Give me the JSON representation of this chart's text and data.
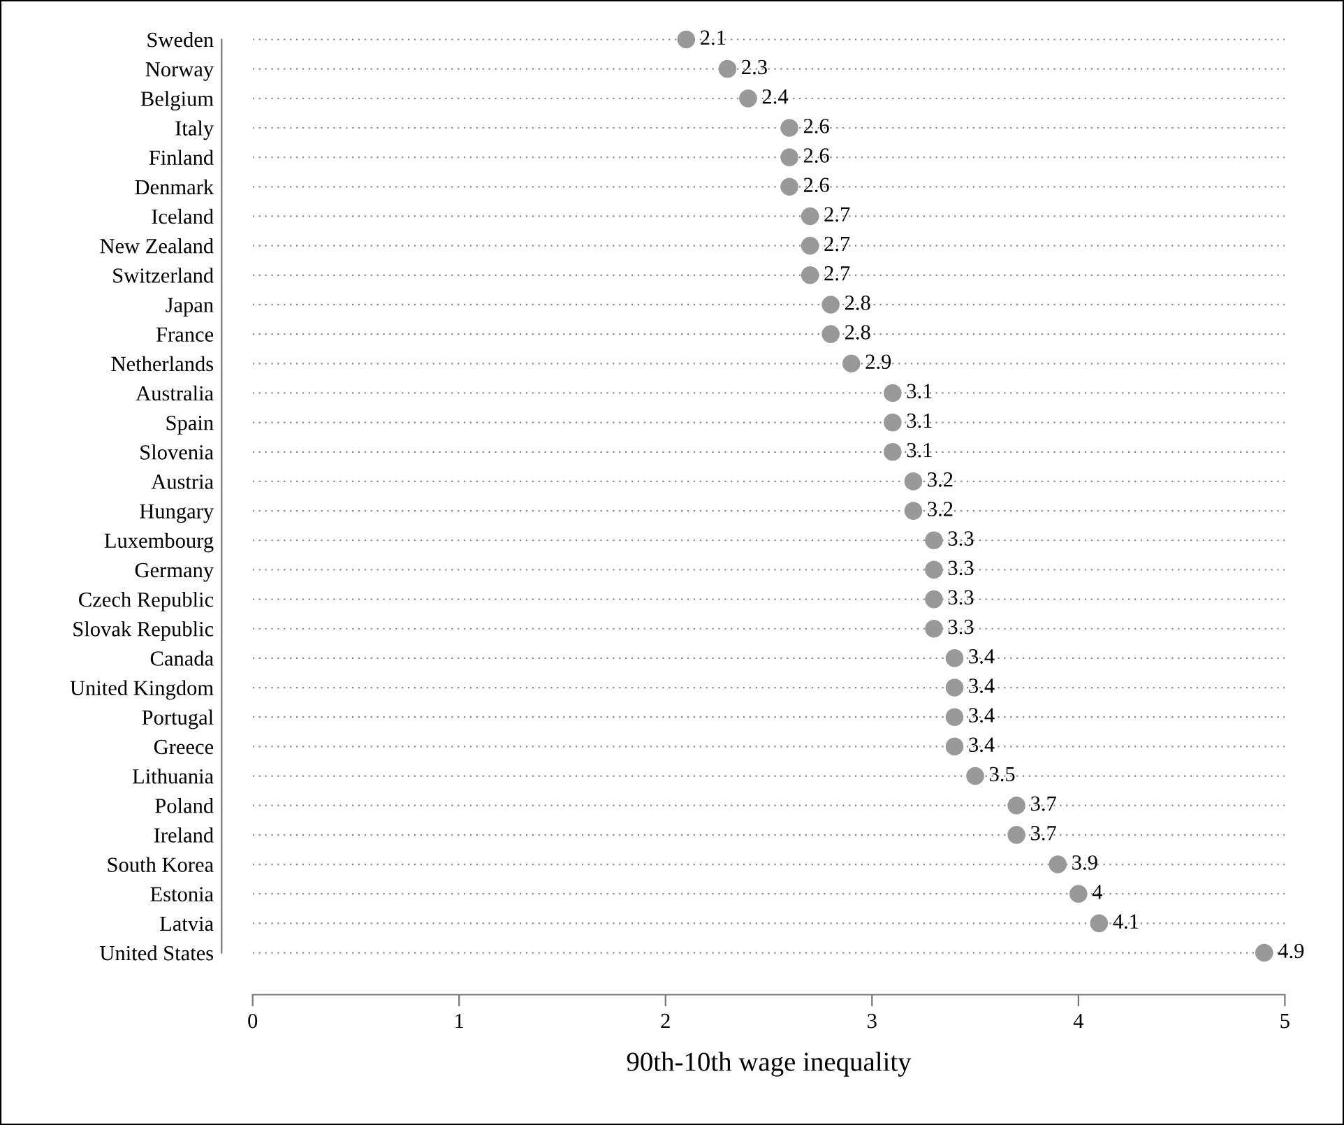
{
  "chart_data": {
    "type": "scatter",
    "orientation": "horizontal",
    "xlabel": "90th-10th wage inequality",
    "categories": [
      "Sweden",
      "Norway",
      "Belgium",
      "Italy",
      "Finland",
      "Denmark",
      "Iceland",
      "New Zealand",
      "Switzerland",
      "Japan",
      "France",
      "Netherlands",
      "Australia",
      "Spain",
      "Slovenia",
      "Austria",
      "Hungary",
      "Luxembourg",
      "Germany",
      "Czech Republic",
      "Slovak Republic",
      "Canada",
      "United Kingdom",
      "Portugal",
      "Greece",
      "Lithuania",
      "Poland",
      "Ireland",
      "South Korea",
      "Estonia",
      "Latvia",
      "United States"
    ],
    "values": [
      2.1,
      2.3,
      2.4,
      2.6,
      2.6,
      2.6,
      2.7,
      2.7,
      2.7,
      2.8,
      2.8,
      2.9,
      3.1,
      3.1,
      3.1,
      3.2,
      3.2,
      3.3,
      3.3,
      3.3,
      3.3,
      3.4,
      3.4,
      3.4,
      3.4,
      3.5,
      3.7,
      3.7,
      3.9,
      4,
      4.1,
      4.9
    ],
    "color": "#999999",
    "marker": "circle",
    "data_labels": true,
    "grid": "y",
    "xlim": [
      0,
      5
    ],
    "xticks": [
      0,
      1,
      2,
      3,
      4,
      5
    ]
  }
}
